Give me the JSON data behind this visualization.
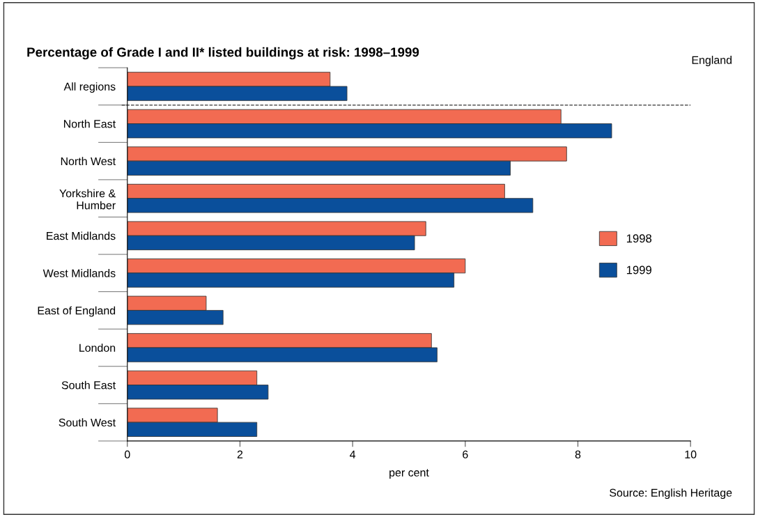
{
  "chart_data": {
    "type": "bar",
    "orientation": "horizontal",
    "title": "Percentage of Grade I and II* listed buildings at risk: 1998–1999",
    "categories": [
      "All regions",
      "North East",
      "North West",
      "Yorkshire &\nHumber",
      "East Midlands",
      "West Midlands",
      "East of England",
      "London",
      "South East",
      "South West"
    ],
    "series": [
      {
        "name": "1998",
        "color": "#f26b52",
        "values": [
          3.6,
          7.7,
          7.8,
          6.7,
          5.3,
          6.0,
          1.4,
          5.4,
          2.3,
          1.6
        ]
      },
      {
        "name": "1999",
        "color": "#0a4f9b",
        "values": [
          3.9,
          8.6,
          6.8,
          7.2,
          5.1,
          5.8,
          1.7,
          5.5,
          2.5,
          2.3
        ]
      }
    ],
    "xlabel": "per cent",
    "xlim": [
      0,
      10
    ],
    "xticks": [
      0,
      2,
      4,
      6,
      8,
      10
    ],
    "annotations": [
      "England",
      "Source: English Heritage"
    ],
    "legend": "right",
    "grid": false
  }
}
